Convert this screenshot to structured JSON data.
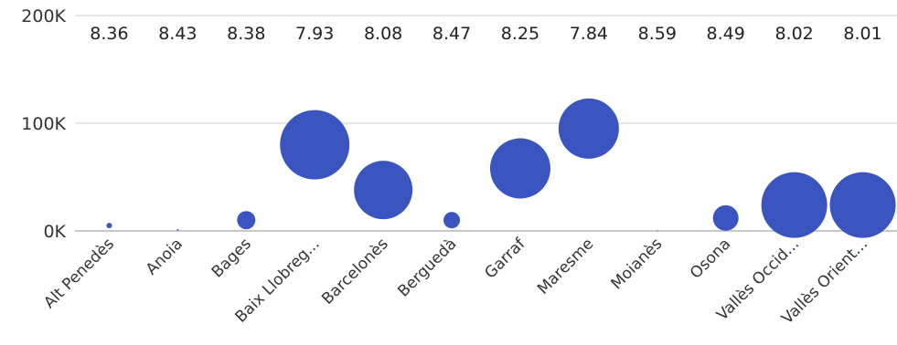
{
  "chart_data": {
    "type": "scatter",
    "title": "",
    "xlabel": "",
    "ylabel": "",
    "ylim": [
      0,
      200000
    ],
    "yticks": [
      {
        "value": 0,
        "label": "0K"
      },
      {
        "value": 100000,
        "label": "100K"
      },
      {
        "value": 200000,
        "label": "200K"
      }
    ],
    "grid": true,
    "legend": "none",
    "color": "#3b55c0",
    "categories": [
      "Alt Penedès",
      "Anoia",
      "Bages",
      "Baix Llobreg...",
      "Barcelonès",
      "Berguedà",
      "Garraf",
      "Maresme",
      "Moianès",
      "Osona",
      "Vallès Occid...",
      "Vallès Orient..."
    ],
    "values": [
      5000,
      1000,
      10000,
      80000,
      38000,
      10000,
      58000,
      95000,
      0,
      12000,
      24000,
      24000
    ],
    "bubble_size": [
      3,
      1,
      10,
      38,
      32,
      9,
      33,
      33,
      0.2,
      14,
      36,
      36
    ],
    "data_labels": [
      "8.36",
      "8.43",
      "8.38",
      "7.93",
      "8.08",
      "8.47",
      "8.25",
      "7.84",
      "8.59",
      "8.49",
      "8.02",
      "8.01"
    ]
  }
}
